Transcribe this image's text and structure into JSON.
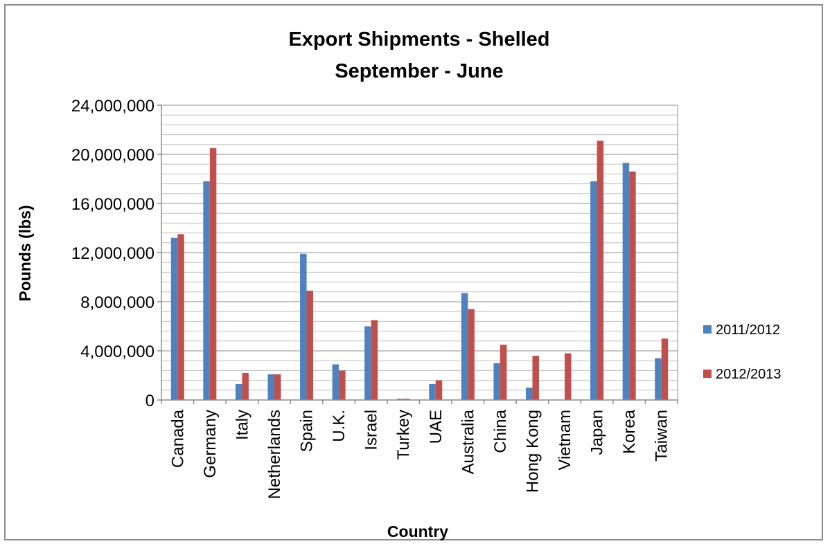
{
  "chart_data": {
    "type": "bar",
    "title": "Export Shipments - Shelled",
    "subtitle": "September - June",
    "xlabel": "Country",
    "ylabel": "Pounds (lbs)",
    "ylim": [
      0,
      24000000
    ],
    "yticks": [
      0,
      4000000,
      8000000,
      12000000,
      16000000,
      20000000,
      24000000
    ],
    "ytick_labels": [
      "0",
      "4,000,000",
      "8,000,000",
      "12,000,000",
      "16,000,000",
      "20,000,000",
      "24,000,000"
    ],
    "grid": true,
    "legend_position": "right",
    "categories": [
      "Canada",
      "Germany",
      "Italy",
      "Netherlands",
      "Spain",
      "U.K.",
      "Israel",
      "Turkey",
      "UAE",
      "Australia",
      "China",
      "Hong Kong",
      "Vietnam",
      "Japan",
      "Korea",
      "Taiwan"
    ],
    "series": [
      {
        "name": "2011/2012",
        "color": "#4f81bd",
        "values": [
          13200000,
          17800000,
          1300000,
          2100000,
          11900000,
          2900000,
          6000000,
          100000,
          1300000,
          8700000,
          3000000,
          1000000,
          0,
          17800000,
          19300000,
          3400000
        ]
      },
      {
        "name": "2012/2013",
        "color": "#c0504d",
        "values": [
          13500000,
          20500000,
          2200000,
          2100000,
          8900000,
          2400000,
          6500000,
          100000,
          1600000,
          7400000,
          4500000,
          3600000,
          3800000,
          21100000,
          18600000,
          5000000
        ]
      }
    ]
  }
}
